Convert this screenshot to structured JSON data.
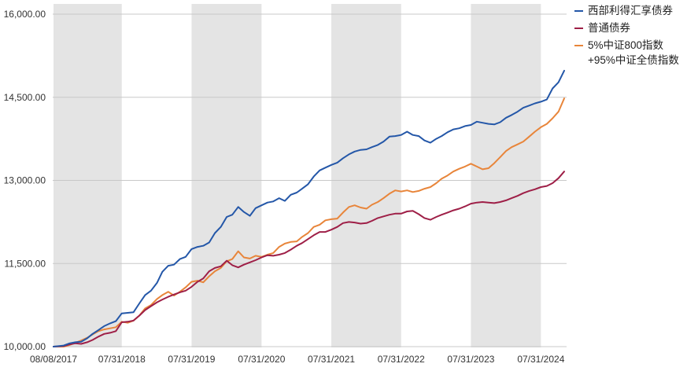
{
  "chart_data": {
    "type": "line",
    "y_ticks": [
      "16,000.00",
      "14,500.00",
      "13,000.00",
      "11,500.00",
      "10,000.00"
    ],
    "y_tick_values": [
      16000,
      14500,
      13000,
      11500,
      10000
    ],
    "x_ticks": [
      "08/08/2017",
      "07/31/2018",
      "07/31/2019",
      "07/31/2020",
      "07/31/2021",
      "07/31/2022",
      "07/31/2023",
      "07/31/2024"
    ],
    "grid": "horizontal",
    "legend_position": "right",
    "shaded_bands": [
      [
        "2017-08-08",
        "2018-07-31"
      ],
      [
        "2019-07-31",
        "2020-07-31"
      ],
      [
        "2021-07-31",
        "2022-07-31"
      ],
      [
        "2023-07-31",
        "2024-07-31"
      ]
    ],
    "series": [
      {
        "name": "西部利得汇享债券",
        "color": "#2457a8",
        "x": [
          "2017-08-08",
          "2017-09-30",
          "2017-10-31",
          "2017-11-30",
          "2017-12-31",
          "2018-01-31",
          "2018-02-28",
          "2018-03-31",
          "2018-04-30",
          "2018-05-31",
          "2018-06-30",
          "2018-07-31",
          "2018-08-31",
          "2018-09-30",
          "2018-10-31",
          "2018-11-30",
          "2018-12-31",
          "2019-01-31",
          "2019-02-28",
          "2019-03-31",
          "2019-04-30",
          "2019-05-31",
          "2019-06-30",
          "2019-07-31",
          "2019-08-31",
          "2019-09-30",
          "2019-10-31",
          "2019-11-30",
          "2019-12-31",
          "2020-01-31",
          "2020-02-29",
          "2020-03-31",
          "2020-04-30",
          "2020-05-31",
          "2020-06-30",
          "2020-07-31",
          "2020-08-31",
          "2020-09-30",
          "2020-10-31",
          "2020-11-30",
          "2020-12-31",
          "2021-01-31",
          "2021-02-28",
          "2021-03-31",
          "2021-04-30",
          "2021-05-31",
          "2021-06-30",
          "2021-07-31",
          "2021-08-31",
          "2021-09-30",
          "2021-10-31",
          "2021-11-30",
          "2021-12-31",
          "2022-01-31",
          "2022-02-28",
          "2022-03-31",
          "2022-04-30",
          "2022-05-31",
          "2022-06-30",
          "2022-07-31",
          "2022-08-31",
          "2022-09-30",
          "2022-10-31",
          "2022-11-30",
          "2022-12-31",
          "2023-01-31",
          "2023-02-28",
          "2023-03-31",
          "2023-04-30",
          "2023-05-31",
          "2023-06-30",
          "2023-07-31",
          "2023-08-31",
          "2023-09-30",
          "2023-10-31",
          "2023-11-30",
          "2023-12-31",
          "2024-01-31",
          "2024-02-29",
          "2024-03-31",
          "2024-04-30",
          "2024-05-31",
          "2024-06-30",
          "2024-07-31",
          "2024-08-31",
          "2024-09-30",
          "2024-10-31",
          "2024-11-30"
        ],
        "values": [
          10000,
          10020,
          10060,
          10080,
          10090,
          10150,
          10230,
          10300,
          10370,
          10420,
          10460,
          10600,
          10610,
          10620,
          10780,
          10930,
          11010,
          11150,
          11350,
          11460,
          11480,
          11580,
          11620,
          11760,
          11800,
          11820,
          11880,
          12050,
          12160,
          12340,
          12380,
          12520,
          12430,
          12360,
          12500,
          12550,
          12600,
          12620,
          12680,
          12630,
          12740,
          12780,
          12850,
          12930,
          13070,
          13180,
          13230,
          13280,
          13320,
          13400,
          13470,
          13520,
          13550,
          13560,
          13600,
          13640,
          13700,
          13790,
          13800,
          13820,
          13880,
          13820,
          13800,
          13720,
          13680,
          13750,
          13800,
          13870,
          13920,
          13940,
          13980,
          14000,
          14060,
          14040,
          14020,
          14010,
          14050,
          14130,
          14180,
          14240,
          14310,
          14350,
          14390,
          14420,
          14460,
          14660,
          14770,
          14980
        ]
      },
      {
        "name": "普通债券",
        "color": "#9e1f47",
        "x": [
          "2017-08-08",
          "2017-09-30",
          "2017-10-31",
          "2017-11-30",
          "2017-12-31",
          "2018-01-31",
          "2018-02-28",
          "2018-03-31",
          "2018-04-30",
          "2018-05-31",
          "2018-06-30",
          "2018-07-31",
          "2018-08-31",
          "2018-09-30",
          "2018-10-31",
          "2018-11-30",
          "2018-12-31",
          "2019-01-31",
          "2019-02-28",
          "2019-03-31",
          "2019-04-30",
          "2019-05-31",
          "2019-06-30",
          "2019-07-31",
          "2019-08-31",
          "2019-09-30",
          "2019-10-31",
          "2019-11-30",
          "2019-12-31",
          "2020-01-31",
          "2020-02-29",
          "2020-03-31",
          "2020-04-30",
          "2020-05-31",
          "2020-06-30",
          "2020-07-31",
          "2020-08-31",
          "2020-09-30",
          "2020-10-31",
          "2020-11-30",
          "2020-12-31",
          "2021-01-31",
          "2021-02-28",
          "2021-03-31",
          "2021-04-30",
          "2021-05-31",
          "2021-06-30",
          "2021-07-31",
          "2021-08-31",
          "2021-09-30",
          "2021-10-31",
          "2021-11-30",
          "2021-12-31",
          "2022-01-31",
          "2022-02-28",
          "2022-03-31",
          "2022-04-30",
          "2022-05-31",
          "2022-06-30",
          "2022-07-31",
          "2022-08-31",
          "2022-09-30",
          "2022-10-31",
          "2022-11-30",
          "2022-12-31",
          "2023-01-31",
          "2023-02-28",
          "2023-03-31",
          "2023-04-30",
          "2023-05-31",
          "2023-06-30",
          "2023-07-31",
          "2023-08-31",
          "2023-09-30",
          "2023-10-31",
          "2023-11-30",
          "2023-12-31",
          "2024-01-31",
          "2024-02-29",
          "2024-03-31",
          "2024-04-30",
          "2024-05-31",
          "2024-06-30",
          "2024-07-31",
          "2024-08-31",
          "2024-09-30",
          "2024-10-31",
          "2024-11-30"
        ],
        "values": [
          10000,
          10010,
          10040,
          10060,
          10050,
          10080,
          10120,
          10180,
          10230,
          10250,
          10280,
          10440,
          10450,
          10470,
          10560,
          10660,
          10730,
          10800,
          10850,
          10900,
          10940,
          10980,
          11010,
          11080,
          11170,
          11230,
          11360,
          11420,
          11450,
          11550,
          11470,
          11430,
          11480,
          11520,
          11560,
          11610,
          11650,
          11640,
          11660,
          11690,
          11750,
          11820,
          11870,
          11940,
          12010,
          12070,
          12070,
          12110,
          12160,
          12230,
          12250,
          12240,
          12220,
          12230,
          12270,
          12320,
          12350,
          12380,
          12400,
          12400,
          12440,
          12450,
          12390,
          12320,
          12290,
          12340,
          12380,
          12420,
          12460,
          12490,
          12530,
          12580,
          12600,
          12610,
          12600,
          12590,
          12610,
          12640,
          12680,
          12720,
          12770,
          12810,
          12840,
          12880,
          12900,
          12950,
          13040,
          13160
        ]
      },
      {
        "name": "5%中证800指数+95%中证全债指数",
        "label_lines": [
          "5%中证800指数",
          "+95%中证全债指数"
        ],
        "color": "#e8853a",
        "x": [
          "2017-08-08",
          "2017-09-30",
          "2017-10-31",
          "2017-11-30",
          "2017-12-31",
          "2018-01-31",
          "2018-02-28",
          "2018-03-31",
          "2018-04-30",
          "2018-05-31",
          "2018-06-30",
          "2018-07-31",
          "2018-08-31",
          "2018-09-30",
          "2018-10-31",
          "2018-11-30",
          "2018-12-31",
          "2019-01-31",
          "2019-02-28",
          "2019-03-31",
          "2019-04-30",
          "2019-05-31",
          "2019-06-30",
          "2019-07-31",
          "2019-08-31",
          "2019-09-30",
          "2019-10-31",
          "2019-11-30",
          "2019-12-31",
          "2020-01-31",
          "2020-02-29",
          "2020-03-31",
          "2020-04-30",
          "2020-05-31",
          "2020-06-30",
          "2020-07-31",
          "2020-08-31",
          "2020-09-30",
          "2020-10-31",
          "2020-11-30",
          "2020-12-31",
          "2021-01-31",
          "2021-02-28",
          "2021-03-31",
          "2021-04-30",
          "2021-05-31",
          "2021-06-30",
          "2021-07-31",
          "2021-08-31",
          "2021-09-30",
          "2021-10-31",
          "2021-11-30",
          "2021-12-31",
          "2022-01-31",
          "2022-02-28",
          "2022-03-31",
          "2022-04-30",
          "2022-05-31",
          "2022-06-30",
          "2022-07-31",
          "2022-08-31",
          "2022-09-30",
          "2022-10-31",
          "2022-11-30",
          "2022-12-31",
          "2023-01-31",
          "2023-02-28",
          "2023-03-31",
          "2023-04-30",
          "2023-05-31",
          "2023-06-30",
          "2023-07-31",
          "2023-08-31",
          "2023-09-30",
          "2023-10-31",
          "2023-11-30",
          "2023-12-31",
          "2024-01-31",
          "2024-02-29",
          "2024-03-31",
          "2024-04-30",
          "2024-05-31",
          "2024-06-30",
          "2024-07-31",
          "2024-08-31",
          "2024-09-30",
          "2024-10-31",
          "2024-11-30"
        ],
        "values": [
          10000,
          10000,
          10030,
          10070,
          10110,
          10160,
          10220,
          10280,
          10310,
          10330,
          10350,
          10450,
          10430,
          10470,
          10560,
          10690,
          10750,
          10860,
          10930,
          10990,
          10920,
          10990,
          11070,
          11170,
          11190,
          11160,
          11270,
          11360,
          11420,
          11540,
          11580,
          11720,
          11610,
          11590,
          11640,
          11620,
          11660,
          11690,
          11800,
          11860,
          11890,
          11900,
          11980,
          12050,
          12160,
          12200,
          12280,
          12300,
          12310,
          12420,
          12520,
          12550,
          12510,
          12490,
          12560,
          12610,
          12680,
          12760,
          12820,
          12800,
          12820,
          12790,
          12810,
          12850,
          12880,
          12950,
          13030,
          13090,
          13160,
          13210,
          13250,
          13300,
          13250,
          13200,
          13220,
          13310,
          13420,
          13530,
          13600,
          13650,
          13700,
          13790,
          13880,
          13960,
          14020,
          14120,
          14240,
          14480
        ]
      }
    ]
  }
}
